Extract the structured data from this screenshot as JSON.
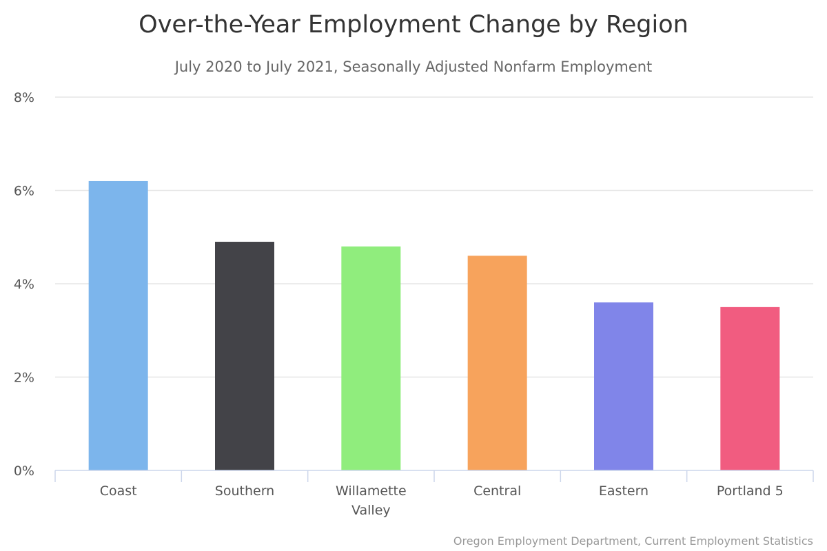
{
  "chart_data": {
    "type": "bar",
    "title": "Over-the-Year Employment Change by Region",
    "subtitle": "July 2020 to July 2021, Seasonally Adjusted Nonfarm Employment",
    "credit": "Oregon Employment Department, Current Employment Statistics",
    "categories": [
      [
        "Coast"
      ],
      [
        "Southern"
      ],
      [
        "Willamette",
        "Valley"
      ],
      [
        "Central"
      ],
      [
        "Eastern"
      ],
      [
        "Portland 5"
      ]
    ],
    "values": [
      6.2,
      4.9,
      4.8,
      4.6,
      3.6,
      3.5
    ],
    "colors": [
      "#7cb5ec",
      "#434348",
      "#90ed7d",
      "#f7a35c",
      "#8085e9",
      "#f15c80"
    ],
    "y_ticks": [
      0,
      2,
      4,
      6,
      8
    ],
    "y_tick_labels": [
      "0%",
      "2%",
      "4%",
      "6%",
      "8%"
    ],
    "ylim": [
      0,
      8
    ],
    "unit": "%",
    "grid": true,
    "legend": false
  }
}
